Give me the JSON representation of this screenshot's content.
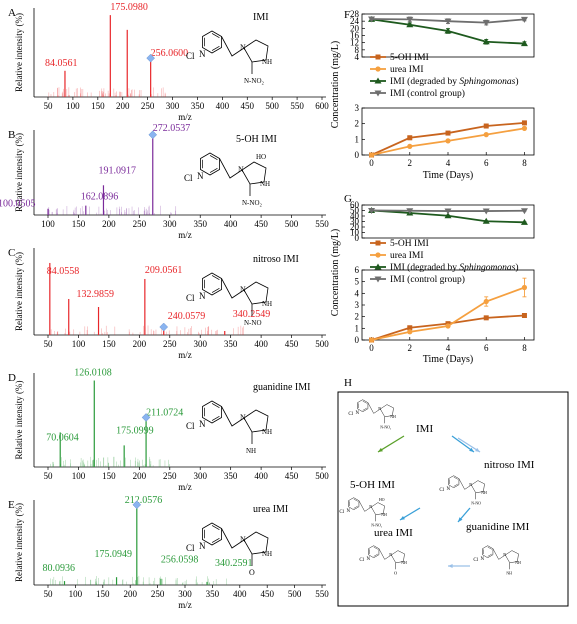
{
  "panel_letters": [
    "A",
    "B",
    "C",
    "D",
    "E",
    "F",
    "G",
    "H"
  ],
  "ms_xlabel": "m/z",
  "ms_ylabel": "Relative intensity (%)",
  "chart_data": [
    {
      "type": "bar",
      "panel": "A",
      "compound": "IMI",
      "color": "#e8262a",
      "xlim": [
        50,
        600
      ],
      "xticks": [
        50,
        100,
        150,
        200,
        250,
        300,
        350,
        400,
        450,
        500,
        550,
        600
      ],
      "peaks": [
        {
          "mz": 84.0561,
          "i": 0.32,
          "label": "84.0561"
        },
        {
          "mz": 175.098,
          "i": 1.0,
          "label": "175.0980"
        },
        {
          "mz": 209.0561,
          "i": 0.82
        },
        {
          "mz": 256.06,
          "i": 0.45,
          "label": "256.0600"
        }
      ]
    },
    {
      "type": "bar",
      "panel": "B",
      "compound": "5-OH IMI",
      "color": "#7a2a9a",
      "xlim": [
        100,
        550
      ],
      "xticks": [
        100,
        150,
        200,
        250,
        300,
        350,
        400,
        450,
        500,
        550
      ],
      "peaks": [
        {
          "mz": 100.0505,
          "i": 0.08,
          "label": "100.0505"
        },
        {
          "mz": 162.0896,
          "i": 0.12,
          "label": "162.0896"
        },
        {
          "mz": 191.0917,
          "i": 0.38,
          "label": "191.0917"
        },
        {
          "mz": 272.0537,
          "i": 1.0,
          "label": "272.0537"
        }
      ]
    },
    {
      "type": "bar",
      "panel": "C",
      "compound": "nitroso IMI",
      "color": "#e8262a",
      "xlim": [
        50,
        500
      ],
      "xticks": [
        50,
        100,
        150,
        200,
        250,
        300,
        350,
        400,
        450,
        500
      ],
      "peaks": [
        {
          "mz": 53.0,
          "i": 0.9
        },
        {
          "mz": 84.0558,
          "i": 0.45,
          "label": "84.0558"
        },
        {
          "mz": 132.9859,
          "i": 0.35,
          "label": "132.9859"
        },
        {
          "mz": 209.0561,
          "i": 0.7,
          "label": "209.0561"
        },
        {
          "mz": 240.0579,
          "i": 0.1,
          "label": "240.0579"
        },
        {
          "mz": 340.2549,
          "i": 0.05,
          "label": "340.2549"
        }
      ]
    },
    {
      "type": "bar",
      "panel": "D",
      "compound": "guanidine IMI",
      "color": "#2a9a3a",
      "xlim": [
        50,
        500
      ],
      "xticks": [
        50,
        100,
        150,
        200,
        250,
        300,
        350,
        400,
        450,
        500
      ],
      "peaks": [
        {
          "mz": 70.0604,
          "i": 0.4,
          "label": "70.0604"
        },
        {
          "mz": 126.0108,
          "i": 1.0,
          "label": "126.0108"
        },
        {
          "mz": 175.0999,
          "i": 0.25,
          "label": "175.0999"
        },
        {
          "mz": 211.0724,
          "i": 0.55,
          "label": "211.0724"
        }
      ]
    },
    {
      "type": "bar",
      "panel": "E",
      "compound": "urea IMI",
      "color": "#2a9a3a",
      "xlim": [
        50,
        550
      ],
      "xticks": [
        50,
        100,
        150,
        200,
        250,
        300,
        350,
        400,
        450,
        500,
        550
      ],
      "peaks": [
        {
          "mz": 80.0936,
          "i": 0.05,
          "label": "80.0936"
        },
        {
          "mz": 175.0949,
          "i": 0.1,
          "label": "175.0949"
        },
        {
          "mz": 212.0576,
          "i": 1.0,
          "label": "212.0576"
        },
        {
          "mz": 256.0598,
          "i": 0.08,
          "label": "256.0598"
        },
        {
          "mz": 340.2591,
          "i": 0.04,
          "label": "340.2591"
        }
      ]
    },
    {
      "type": "line",
      "panel": "F",
      "xlabel": "Time (Days)",
      "ylabel": "Concentration (mg/L)",
      "x": [
        0,
        2,
        4,
        6,
        8
      ],
      "xlim": [
        -0.5,
        8.5
      ],
      "y_top": {
        "ylim": [
          4,
          28
        ],
        "ticks": [
          4,
          8,
          12,
          16,
          20,
          24,
          28
        ]
      },
      "y_bottom": {
        "ylim": [
          0,
          3
        ],
        "ticks": [
          0,
          1,
          2,
          3
        ]
      },
      "series": [
        {
          "name": "5-OH IMI",
          "color": "#c8641e",
          "marker": "square",
          "axis": "bottom",
          "values": [
            0,
            1.1,
            1.4,
            1.85,
            2.05
          ],
          "err": [
            0,
            0.12,
            0.1,
            0.1,
            0.1
          ]
        },
        {
          "name": "urea IMI",
          "color": "#f5a040",
          "marker": "circle",
          "axis": "bottom",
          "values": [
            0,
            0.55,
            0.9,
            1.3,
            1.7
          ],
          "err": [
            0,
            0.05,
            0.05,
            0.05,
            0.05
          ]
        },
        {
          "name_prefix": "IMI (degraded by ",
          "name_italic": "Sphingomonas",
          "name_suffix": ")",
          "color": "#1e5a1e",
          "marker": "triangle",
          "axis": "top",
          "values": [
            25,
            22,
            18.5,
            12.5,
            11.5
          ],
          "err": [
            0.6,
            1.0,
            1.3,
            1.3,
            1.0
          ]
        },
        {
          "name": "IMI (control group)",
          "color": "#6e6e6e",
          "marker": "tri-down",
          "axis": "top",
          "values": [
            25.2,
            25,
            24,
            23.2,
            25
          ],
          "err": [
            0.5,
            1.3,
            1.3,
            1.3,
            0.8
          ]
        }
      ]
    },
    {
      "type": "line",
      "panel": "G",
      "xlabel": "Time (Days)",
      "ylabel": "Concentration (mg/L)",
      "x": [
        0,
        2,
        4,
        6,
        8
      ],
      "xlim": [
        -0.5,
        8.5
      ],
      "y_top": {
        "ylim": [
          0,
          60
        ],
        "ticks": [
          0,
          10,
          20,
          30,
          40,
          50,
          60
        ]
      },
      "y_bottom": {
        "ylim": [
          0,
          6
        ],
        "ticks": [
          0,
          1,
          2,
          3,
          4,
          5,
          6
        ]
      },
      "series": [
        {
          "name": "5-OH IMI",
          "color": "#c8641e",
          "marker": "square",
          "axis": "bottom",
          "values": [
            0,
            1.05,
            1.4,
            1.9,
            2.1
          ],
          "err": [
            0,
            0.1,
            0.1,
            0.08,
            0.08
          ]
        },
        {
          "name": "urea IMI",
          "color": "#f5a040",
          "marker": "circle",
          "axis": "bottom",
          "values": [
            0,
            0.7,
            1.2,
            3.3,
            4.5
          ],
          "err": [
            0,
            0.1,
            0.1,
            0.4,
            0.8
          ]
        },
        {
          "name_prefix": "IMI (degraded by ",
          "name_italic": "Sphingomonas",
          "name_suffix": ")",
          "color": "#1e5a1e",
          "marker": "triangle",
          "axis": "top",
          "values": [
            50,
            45.5,
            40.5,
            30.5,
            28.5
          ],
          "err": [
            0.5,
            0.8,
            0.8,
            0.8,
            0.8
          ]
        },
        {
          "name": "IMI (control group)",
          "color": "#6e6e6e",
          "marker": "tri-down",
          "axis": "top",
          "values": [
            50,
            49.5,
            49,
            49,
            49.5
          ],
          "err": [
            0.6,
            0.6,
            0.6,
            0.6,
            0.6
          ]
        }
      ]
    }
  ],
  "pathway": {
    "nodes": [
      "IMI",
      "5-OH IMI",
      "nitroso IMI",
      "urea IMI",
      "guanidine IMI"
    ]
  },
  "structure_labels": {
    "cl": "Cl",
    "n": "N",
    "nh": "NH",
    "no2": "NO₂",
    "no": "NO",
    "ho": "HO",
    "o": "O"
  }
}
